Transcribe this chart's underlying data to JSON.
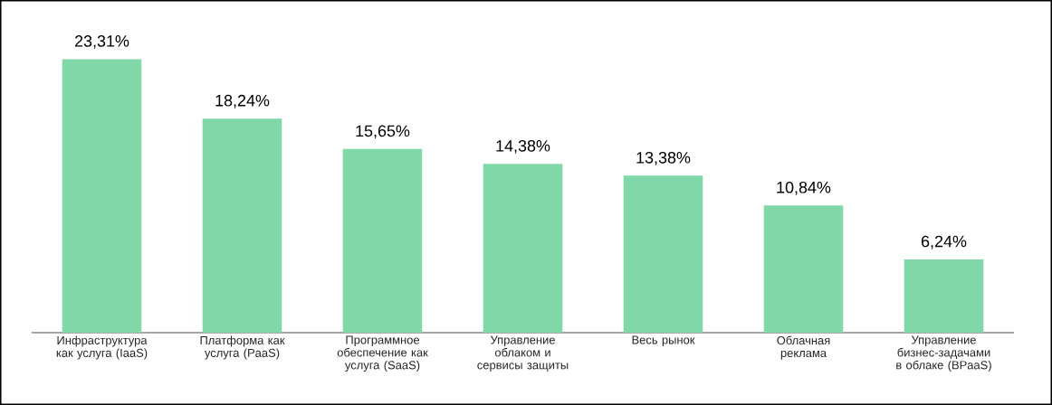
{
  "chart_data": {
    "type": "bar",
    "categories": [
      "Инфраструктура как услуга (IaaS)",
      "Платформа как услуга (PaaS)",
      "Программное обеспечение как услуга (SaaS)",
      "Управление облаком и сервисы защиты",
      "Весь рынок",
      "Облачная реклама",
      "Управление бизнес-задачами в облаке (BPaaS)"
    ],
    "values": [
      23.31,
      18.24,
      15.65,
      14.38,
      13.38,
      10.84,
      6.24
    ],
    "value_labels": [
      "23,31%",
      "18,24%",
      "15,65%",
      "14,38%",
      "13,38%",
      "10,84%",
      "6,24%"
    ],
    "color": "#80d8a8"
  }
}
